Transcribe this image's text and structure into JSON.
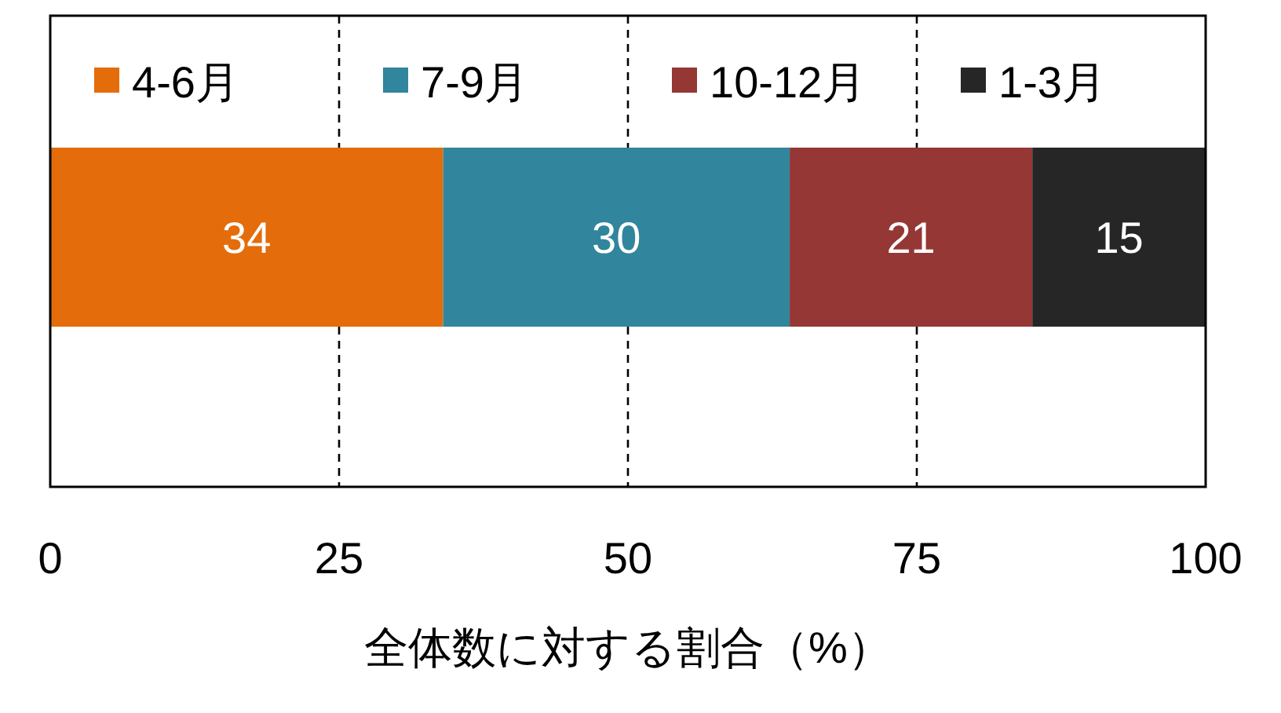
{
  "chart_data": {
    "type": "bar",
    "orientation": "horizontal",
    "stacked": true,
    "categories": [
      null
    ],
    "series": [
      {
        "name": "4-6月",
        "color": "#e46c0a",
        "values": [
          34
        ]
      },
      {
        "name": "7-9月",
        "color": "#31859c",
        "values": [
          30
        ]
      },
      {
        "name": "10-12月",
        "color": "#953735",
        "values": [
          21
        ]
      },
      {
        "name": "1-3月",
        "color": "#262626",
        "values": [
          15
        ]
      }
    ],
    "xlim": [
      0,
      100
    ],
    "xticks": [
      0,
      25,
      50,
      75,
      100
    ],
    "xlabel": "全体数に対する割合（%）",
    "grid": "x",
    "line_style": "dashed",
    "legend": "top",
    "data_labels": true
  }
}
